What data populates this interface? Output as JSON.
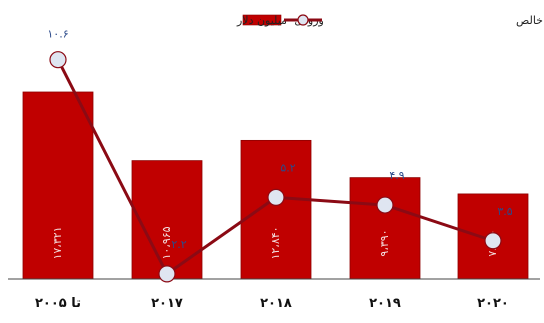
{
  "legend": {
    "bars": "ورودی- میلیون دلار",
    "line": "ورودی- درصدی از تشکیل سرمایه ثابت ناخالص"
  },
  "colors": {
    "bar": "#c00000",
    "bar_edge": "#8e0000",
    "line": "#8b0a14",
    "marker_fill": "#dfe5f1",
    "marker_edge": "#8b0a14",
    "pt_label": "#2b4a8a"
  },
  "chart_data": {
    "type": "bar",
    "categories": [
      "تا ۲۰۰۵",
      "۲۰۱۷",
      "۲۰۱۸",
      "۲۰۱۹",
      "۲۰۲۰"
    ],
    "series": [
      {
        "name": "ورودی- میلیون دلار",
        "type": "bar",
        "values": [
          17321,
          10965,
          12840,
          9390,
          7880
        ],
        "labels": [
          "۱۷،۳۲۱",
          "۱۰،۹۶۵",
          "۱۲،۸۴۰",
          "۹،۳۹۰",
          "۷،۸۸۰"
        ]
      },
      {
        "name": "ورودی- درصدی از تشکیل سرمایه ثابت ناخالص",
        "type": "line",
        "values": [
          10.6,
          2.2,
          5.2,
          4.9,
          3.5
        ],
        "labels": [
          "۱۰.۶",
          "۲.۲",
          "۵.۲",
          "۴.۹",
          "۳.۵"
        ]
      }
    ]
  }
}
